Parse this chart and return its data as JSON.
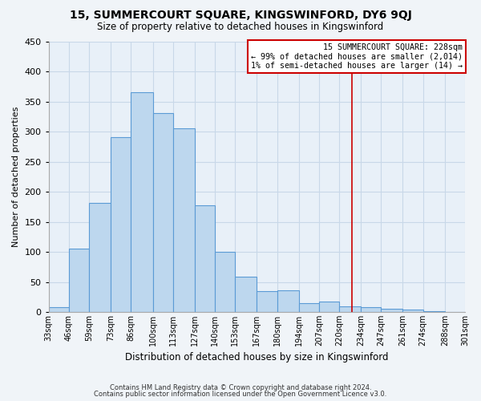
{
  "title": "15, SUMMERCOURT SQUARE, KINGSWINFORD, DY6 9QJ",
  "subtitle": "Size of property relative to detached houses in Kingswinford",
  "xlabel": "Distribution of detached houses by size in Kingswinford",
  "ylabel": "Number of detached properties",
  "bar_edges": [
    33,
    46,
    59,
    73,
    86,
    100,
    113,
    127,
    140,
    153,
    167,
    180,
    194,
    207,
    220,
    234,
    247,
    261,
    274,
    288,
    301
  ],
  "bar_heights": [
    8,
    105,
    181,
    291,
    366,
    331,
    305,
    177,
    100,
    59,
    35,
    36,
    15,
    18,
    10,
    8,
    5,
    4,
    2,
    0
  ],
  "bar_color": "#bdd7ee",
  "bar_edge_color": "#5b9bd5",
  "grid_color": "#c8d8e8",
  "vline_x": 228,
  "vline_color": "#cc0000",
  "annotation_title": "15 SUMMERCOURT SQUARE: 228sqm",
  "annotation_line1": "← 99% of detached houses are smaller (2,014)",
  "annotation_line2": "1% of semi-detached houses are larger (14) →",
  "xlim": [
    33,
    301
  ],
  "ylim": [
    0,
    450
  ],
  "yticks": [
    0,
    50,
    100,
    150,
    200,
    250,
    300,
    350,
    400,
    450
  ],
  "xtick_labels": [
    "33sqm",
    "46sqm",
    "59sqm",
    "73sqm",
    "86sqm",
    "100sqm",
    "113sqm",
    "127sqm",
    "140sqm",
    "153sqm",
    "167sqm",
    "180sqm",
    "194sqm",
    "207sqm",
    "220sqm",
    "234sqm",
    "247sqm",
    "261sqm",
    "274sqm",
    "288sqm",
    "301sqm"
  ],
  "footer1": "Contains HM Land Registry data © Crown copyright and database right 2024.",
  "footer2": "Contains public sector information licensed under the Open Government Licence v3.0.",
  "bg_color": "#f0f4f8",
  "plot_bg_color": "#e8f0f8"
}
